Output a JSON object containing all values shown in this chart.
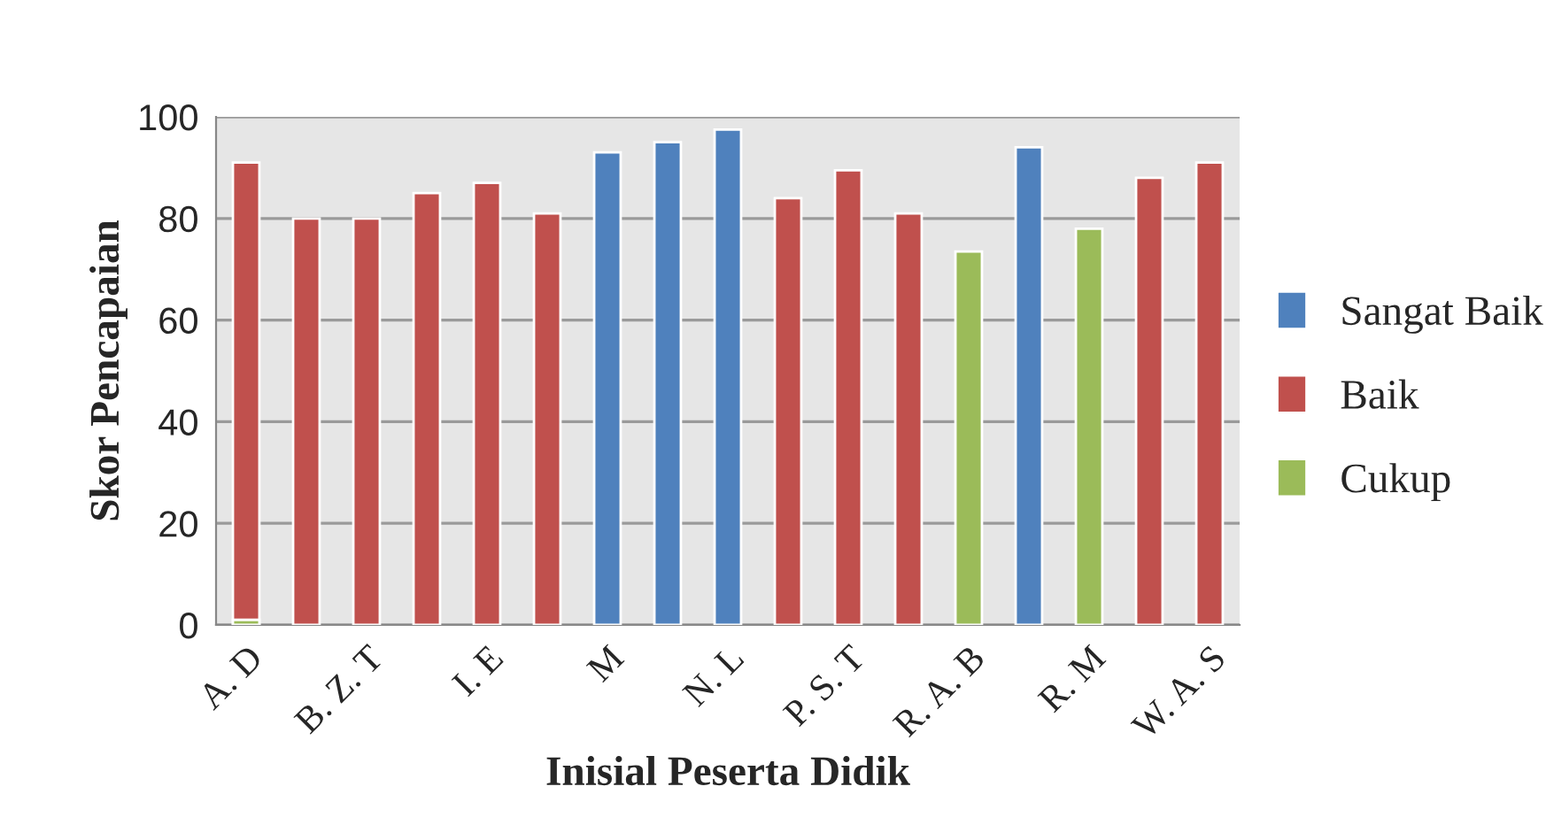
{
  "chart_data": {
    "type": "bar",
    "xlabel": "Inisial Peserta Didik",
    "ylabel": "Skor Pencapaian",
    "categories": [
      "A. D",
      null,
      "B. Z. T",
      null,
      "I. E",
      null,
      "M",
      null,
      "N. L",
      null,
      "P. S. T",
      null,
      "R. A. B",
      null,
      "R. M",
      null,
      "W. A. S"
    ],
    "series": [
      {
        "name": "Sangat Baik",
        "color": "#4f81bd",
        "values": [
          null,
          null,
          null,
          null,
          null,
          null,
          93,
          95,
          97.5,
          null,
          null,
          null,
          null,
          94,
          null,
          null,
          null
        ]
      },
      {
        "name": "Baik",
        "color": "#c0504d",
        "values": [
          91,
          80,
          80,
          85,
          87,
          81,
          null,
          null,
          null,
          84,
          89.5,
          81,
          null,
          null,
          null,
          88,
          91
        ]
      },
      {
        "name": "Cukup",
        "color": "#9bbb59",
        "values": [
          1,
          null,
          null,
          null,
          null,
          null,
          null,
          null,
          null,
          null,
          null,
          null,
          73.5,
          null,
          78,
          null,
          null
        ]
      }
    ],
    "ylim": [
      0,
      100
    ],
    "yticks": [
      0,
      20,
      40,
      60,
      80,
      100
    ],
    "grid": "y",
    "legend": "right"
  }
}
